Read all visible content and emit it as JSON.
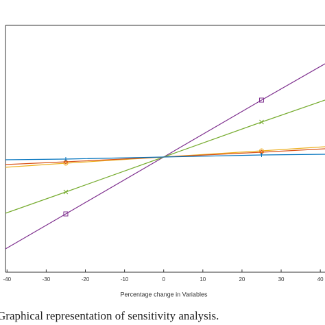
{
  "chart_data": {
    "type": "line",
    "caption": "Graphical representation of sensitivity analysis.",
    "xlabel": "Percentage change in Variables",
    "x": [
      -40.4,
      -25,
      0,
      25,
      41.2
    ],
    "xlim": [
      -40.4,
      41.2
    ],
    "xticks": [
      -40,
      -30,
      -20,
      -10,
      0,
      10,
      20,
      30,
      40
    ],
    "ylim": [
      -168,
      192
    ],
    "series": [
      {
        "color": "#7e2f8e",
        "marker": "square",
        "values": [
          -134,
          -83,
          0,
          83,
          136
        ]
      },
      {
        "color": "#77ac30",
        "marker": "x",
        "values": [
          -82,
          -51,
          0,
          51,
          83
        ]
      },
      {
        "color": "#edb120",
        "marker": "circle",
        "values": [
          -15,
          -9,
          0,
          9,
          15
        ]
      },
      {
        "color": "#d95319",
        "marker": "diamond",
        "values": [
          -11,
          -7,
          0,
          7,
          12
        ]
      },
      {
        "color": "#0072bd",
        "marker": "plus",
        "values": [
          -4,
          -3,
          0,
          3,
          4
        ]
      }
    ]
  }
}
